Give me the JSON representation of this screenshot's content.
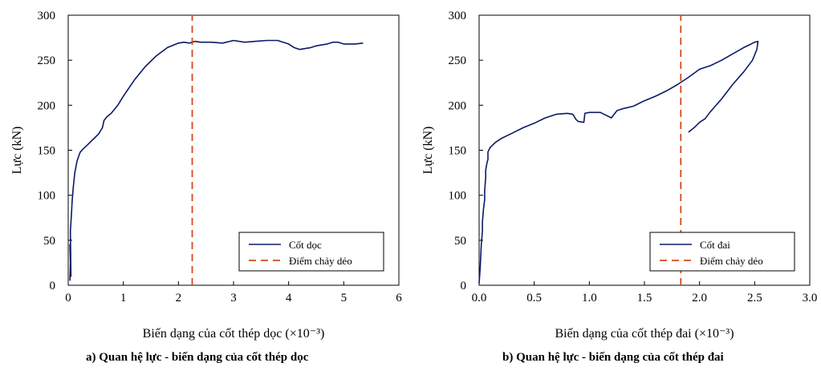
{
  "colors": {
    "series": "#0b1a66",
    "yield": "#d4491c",
    "axis": "#000000"
  },
  "chart_data": [
    {
      "id": "a",
      "type": "line",
      "title": "",
      "caption": "a) Quan hệ lực - biến dạng của cốt thép dọc",
      "xlabel": "Biến dạng của cốt thép dọc (×10⁻³)",
      "ylabel": "Lực (kN)",
      "xlim": [
        0,
        6
      ],
      "ylim": [
        0,
        300
      ],
      "xticks": [
        0,
        1,
        2,
        3,
        4,
        5,
        6
      ],
      "xtick_labels": [
        "0",
        "1",
        "2",
        "3",
        "4",
        "5",
        "6"
      ],
      "yticks": [
        0,
        50,
        100,
        150,
        200,
        250,
        300
      ],
      "ytick_labels": [
        "0",
        "50",
        "100",
        "150",
        "200",
        "250",
        "300"
      ],
      "grid": false,
      "legend_position": "bottom-right",
      "series": [
        {
          "name": "Cốt dọc",
          "style": "solid",
          "x": [
            0.03,
            0.04,
            0.03,
            0.05,
            0.04,
            0.06,
            0.07,
            0.09,
            0.12,
            0.16,
            0.2,
            0.22,
            0.28,
            0.35,
            0.45,
            0.55,
            0.62,
            0.65,
            0.7,
            0.78,
            0.9,
            1.0,
            1.2,
            1.4,
            1.6,
            1.8,
            2.0,
            2.1,
            2.2,
            2.3,
            2.4,
            2.6,
            2.8,
            3.0,
            3.2,
            3.4,
            3.6,
            3.8,
            4.0,
            4.1,
            4.2,
            4.3,
            4.4,
            4.5,
            4.6,
            4.7,
            4.8,
            4.9,
            5.0,
            5.2,
            5.35
          ],
          "y": [
            5,
            25,
            45,
            10,
            60,
            80,
            92,
            108,
            125,
            138,
            145,
            148,
            152,
            156,
            162,
            168,
            175,
            183,
            187,
            191,
            200,
            210,
            228,
            243,
            255,
            264,
            269,
            270,
            269,
            271,
            270,
            270,
            269,
            272,
            270,
            271,
            272,
            272,
            268,
            264,
            262,
            263,
            264,
            266,
            267,
            268,
            270,
            270,
            268,
            268,
            269
          ]
        },
        {
          "name": "Điểm chảy dẻo",
          "style": "dashed",
          "x": [
            2.25,
            2.25
          ],
          "y": [
            0,
            300
          ]
        }
      ]
    },
    {
      "id": "b",
      "type": "line",
      "title": "",
      "caption": "b) Quan hệ lực - biến dạng của cốt thép đai",
      "xlabel": "Biến dạng của cốt thép đai (×10⁻³)",
      "ylabel": "Lực (kN)",
      "xlim": [
        0,
        3
      ],
      "ylim": [
        0,
        300
      ],
      "xticks": [
        0,
        0.5,
        1,
        1.5,
        2,
        2.5,
        3
      ],
      "xtick_labels": [
        "0.0",
        "0.5",
        "1.0",
        "1.5",
        "2.0",
        "2.5",
        "3.0"
      ],
      "yticks": [
        0,
        50,
        100,
        150,
        200,
        250,
        300
      ],
      "ytick_labels": [
        "0",
        "50",
        "100",
        "150",
        "200",
        "250",
        "300"
      ],
      "grid": false,
      "legend_position": "bottom-right",
      "series": [
        {
          "name": "Cốt đai",
          "style": "solid",
          "x": [
            0.0,
            0.01,
            0.02,
            0.03,
            0.03,
            0.04,
            0.05,
            0.05,
            0.06,
            0.06,
            0.07,
            0.08,
            0.08,
            0.1,
            0.15,
            0.2,
            0.3,
            0.4,
            0.5,
            0.6,
            0.7,
            0.8,
            0.85,
            0.88,
            0.9,
            0.95,
            0.96,
            1.0,
            1.05,
            1.1,
            1.15,
            1.2,
            1.25,
            1.3,
            1.4,
            1.5,
            1.6,
            1.7,
            1.8,
            1.9,
            2.0,
            2.1,
            2.2,
            2.3,
            2.4,
            2.45,
            2.5,
            2.53,
            2.52,
            2.48,
            2.4,
            2.3,
            2.2,
            2.1,
            2.05,
            2.0,
            1.95,
            1.9
          ],
          "y": [
            2,
            20,
            45,
            60,
            70,
            85,
            95,
            105,
            120,
            128,
            135,
            140,
            148,
            153,
            159,
            163,
            169,
            175,
            180,
            186,
            190,
            191,
            190,
            184,
            182,
            181,
            191,
            192,
            192,
            192,
            189,
            186,
            194,
            196,
            199,
            205,
            210,
            216,
            223,
            231,
            240,
            244,
            250,
            257,
            264,
            267,
            270,
            271,
            262,
            250,
            237,
            223,
            207,
            193,
            185,
            181,
            175,
            170
          ]
        },
        {
          "name": "Điểm chảy dẻo",
          "style": "dashed",
          "x": [
            1.83,
            1.83
          ],
          "y": [
            0,
            300
          ]
        }
      ]
    }
  ]
}
